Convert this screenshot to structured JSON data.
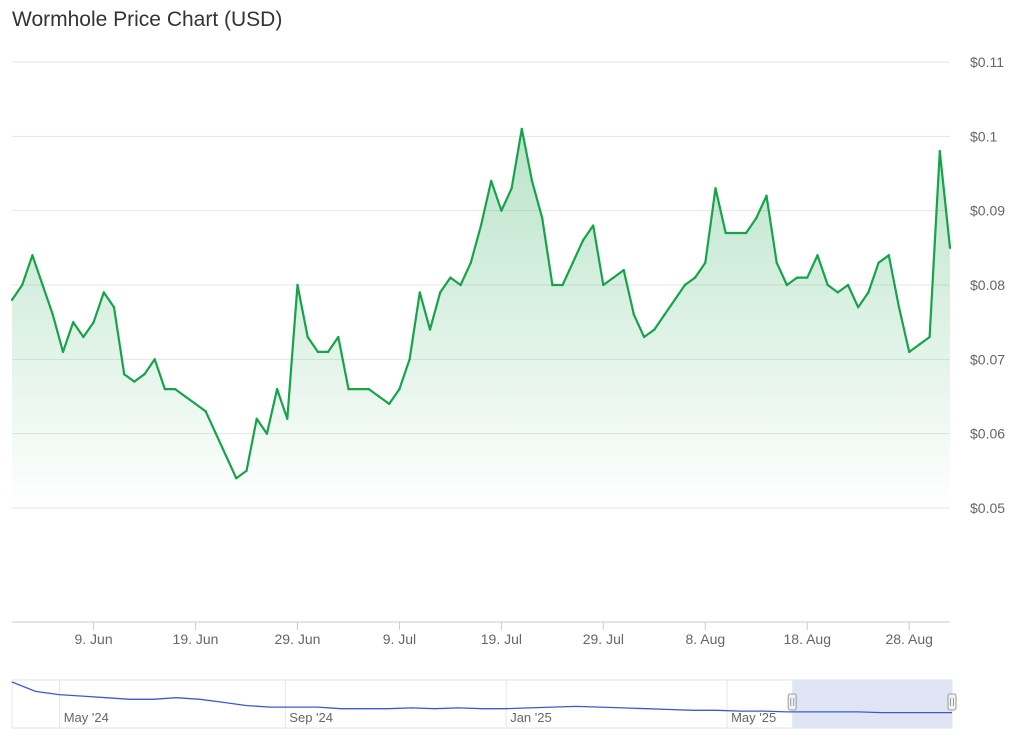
{
  "chart_data": {
    "type": "area",
    "title": "Wormhole Price Chart (USD)",
    "currency": "USD",
    "colors": {
      "line": "#16a34a",
      "fill_top": "#bfe8c9",
      "grid": "#e6e6e6",
      "axis_text": "#666666",
      "navigator_line": "#3b5bcc",
      "navigator_mask": "#dbe2f3"
    },
    "y_axis": {
      "ticks": [
        "$0.05",
        "$0.06",
        "$0.07",
        "$0.08",
        "$0.09",
        "$0.1",
        "$0.11"
      ],
      "tick_values": [
        0.05,
        0.06,
        0.07,
        0.08,
        0.09,
        0.1,
        0.11
      ],
      "ylim": [
        0.05,
        0.11
      ],
      "position": "right"
    },
    "x_axis": {
      "ticks": [
        "9. Jun",
        "19. Jun",
        "29. Jun",
        "9. Jul",
        "19. Jul",
        "29. Jul",
        "8. Aug",
        "18. Aug",
        "28. Aug"
      ],
      "tick_days": [
        9,
        19,
        29,
        39,
        49,
        59,
        69,
        79,
        89
      ],
      "day_zero": "2024-05-31",
      "xlim_days": [
        1,
        93
      ]
    },
    "grid": true,
    "series": [
      {
        "x_days": [
          1,
          2,
          3,
          4,
          5,
          6,
          7,
          8,
          9,
          10,
          11,
          12,
          13,
          14,
          15,
          16,
          17,
          18,
          19,
          20,
          21,
          22,
          23,
          24,
          25,
          26,
          27,
          28,
          29,
          30,
          31,
          32,
          33,
          34,
          35,
          36,
          37,
          38,
          39,
          40,
          41,
          42,
          43,
          44,
          45,
          46,
          47,
          48,
          49,
          50,
          51,
          52,
          53,
          54,
          55,
          56,
          57,
          58,
          59,
          60,
          61,
          62,
          63,
          64,
          65,
          66,
          67,
          68,
          69,
          70,
          71,
          72,
          73,
          74,
          75,
          76,
          77,
          78,
          79,
          80,
          81,
          82,
          83,
          84,
          85,
          86,
          87,
          88,
          89,
          90,
          91,
          92,
          93
        ],
        "values": [
          0.078,
          0.08,
          0.084,
          0.08,
          0.076,
          0.071,
          0.075,
          0.073,
          0.075,
          0.079,
          0.077,
          0.068,
          0.067,
          0.068,
          0.07,
          0.066,
          0.066,
          0.065,
          0.064,
          0.063,
          0.06,
          0.057,
          0.054,
          0.055,
          0.062,
          0.06,
          0.066,
          0.062,
          0.08,
          0.073,
          0.071,
          0.071,
          0.073,
          0.066,
          0.066,
          0.066,
          0.065,
          0.064,
          0.066,
          0.07,
          0.079,
          0.074,
          0.079,
          0.081,
          0.08,
          0.083,
          0.088,
          0.094,
          0.09,
          0.093,
          0.101,
          0.094,
          0.089,
          0.08,
          0.08,
          0.083,
          0.086,
          0.088,
          0.08,
          0.081,
          0.082,
          0.076,
          0.073,
          0.074,
          0.076,
          0.078,
          0.08,
          0.081,
          0.083,
          0.093,
          0.087,
          0.087,
          0.087,
          0.089,
          0.092,
          0.083,
          0.08,
          0.081,
          0.081,
          0.084,
          0.08,
          0.079,
          0.08,
          0.077,
          0.079,
          0.083,
          0.084,
          0.077,
          0.071,
          0.072,
          0.073,
          0.098,
          0.085
        ]
      }
    ],
    "navigator": {
      "labels": [
        "May '24",
        "Sep '24",
        "Jan '25",
        "May '25"
      ],
      "values": [
        0.28,
        0.22,
        0.2,
        0.19,
        0.18,
        0.17,
        0.17,
        0.18,
        0.17,
        0.15,
        0.13,
        0.12,
        0.12,
        0.12,
        0.11,
        0.11,
        0.11,
        0.115,
        0.11,
        0.115,
        0.11,
        0.11,
        0.115,
        0.12,
        0.125,
        0.12,
        0.115,
        0.11,
        0.105,
        0.1,
        0.1,
        0.095,
        0.095,
        0.09,
        0.09,
        0.09,
        0.09,
        0.085,
        0.085,
        0.085,
        0.085
      ],
      "selected_range": [
        0.83,
        1.0
      ]
    }
  }
}
